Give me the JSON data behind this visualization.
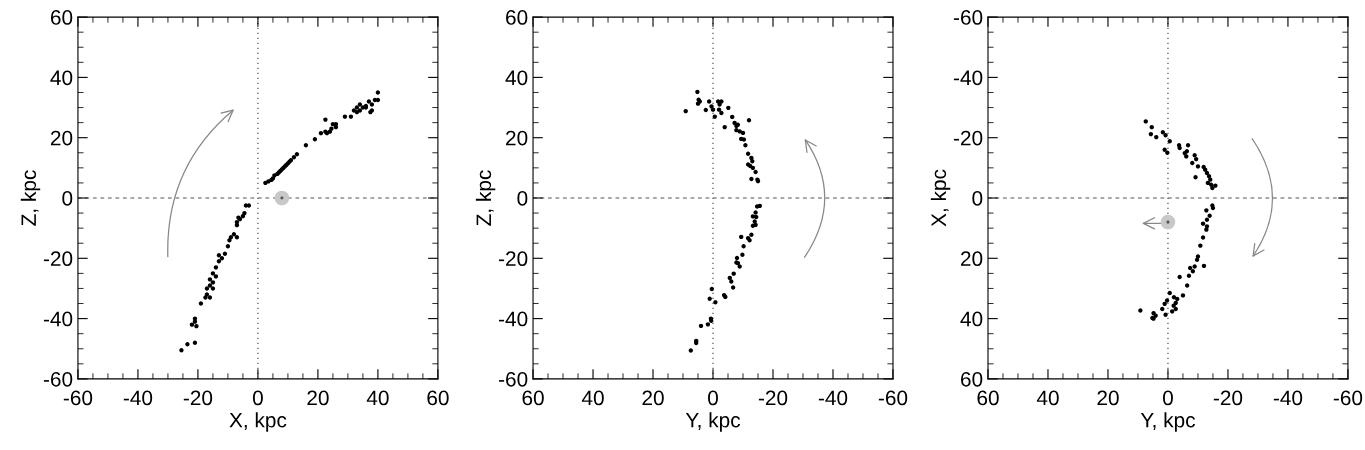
{
  "chart_data": [
    {
      "type": "scatter",
      "xlabel": "X, kpc",
      "ylabel": "Z, kpc",
      "xlim": [
        -60,
        60
      ],
      "ylim": [
        -60,
        60
      ],
      "xticks": [
        -60,
        -40,
        -20,
        0,
        20,
        40,
        60
      ],
      "yticks": [
        -60,
        -40,
        -20,
        0,
        20,
        40,
        60
      ],
      "grid": false,
      "marker": "circle",
      "ref_lines": [
        {
          "axis": "x",
          "value": 0,
          "line_style": "dotted",
          "color": "#555555"
        },
        {
          "axis": "y",
          "value": 0,
          "line_style": "dashed",
          "color": "#555555"
        }
      ],
      "series": [
        {
          "color": "#000000",
          "x": [
            2.5,
            3.5,
            4.5,
            5,
            5.5,
            6.5,
            7,
            7.5,
            8,
            8.5,
            9,
            9.5,
            10,
            10.5,
            11,
            12,
            13,
            16,
            19,
            21,
            22.5,
            22.5,
            23,
            24,
            24.5,
            25,
            26,
            26,
            29,
            31,
            32,
            33,
            33,
            34,
            34,
            35,
            36,
            37,
            38,
            38,
            39,
            40,
            40,
            37.5,
            36,
            -3,
            -4,
            -4.5,
            -5,
            -6,
            -6.5,
            -7,
            -7,
            -7,
            -8,
            -9,
            -9.5,
            -10,
            -11,
            -12,
            -13,
            -13,
            -14,
            -14,
            -15,
            -15,
            -16,
            -16,
            -15,
            -17,
            -17,
            -16,
            -17.5,
            -19,
            -21,
            -21,
            -21,
            -22,
            -20.5,
            -23.5,
            -25.5
          ],
          "values": [
            5,
            5.5,
            6,
            6.5,
            7.5,
            8,
            8.5,
            9,
            9.5,
            10,
            10.5,
            11,
            11.5,
            12,
            12.5,
            13.5,
            14.5,
            17.5,
            19.5,
            21.5,
            26,
            22,
            21.5,
            22,
            23,
            24.5,
            24.5,
            23.5,
            27,
            27,
            29,
            30,
            28.5,
            31,
            29,
            30,
            30,
            32,
            31,
            29,
            32.5,
            35,
            32.5,
            28.5,
            30.5,
            -2.5,
            -2.5,
            -5,
            -6,
            -7,
            -6.5,
            -9,
            -8,
            -13,
            -12,
            -13,
            -14,
            -16,
            -18.5,
            -20,
            -19,
            -21,
            -23,
            -26,
            -25,
            -28,
            -27,
            -29,
            -30,
            -30,
            -32,
            -33,
            -33,
            -35,
            -40,
            -41,
            -48,
            -42,
            -42.5,
            -48.5,
            -50.5
          ]
        },
        {
          "color": "#c8c8c8",
          "x": [
            8
          ],
          "values": [
            0
          ]
        }
      ]
    },
    {
      "type": "scatter",
      "xlabel": "Y, kpc",
      "ylabel": "Z, kpc",
      "xlim": [
        60,
        -60
      ],
      "ylim": [
        -60,
        60
      ],
      "xticks": [
        60,
        40,
        20,
        0,
        -20,
        -40,
        -60
      ],
      "yticks": [
        -60,
        -40,
        -20,
        0,
        20,
        40,
        60
      ],
      "grid": false,
      "marker": "circle",
      "ref_lines": [
        {
          "axis": "x",
          "value": 0,
          "line_style": "dotted",
          "color": "#555555"
        },
        {
          "axis": "y",
          "value": 0,
          "line_style": "dashed",
          "color": "#555555"
        }
      ],
      "series": [
        {
          "color": "#000000",
          "x": [
            9.1,
            5.2,
            4.8,
            4.4,
            5,
            2.4,
            1.3,
            0.5,
            0,
            -0.6,
            -1.7,
            -2.2,
            -2.8,
            -2,
            -2.8,
            -3.9,
            -5.1,
            -6.4,
            -7.2,
            -7.8,
            -8.3,
            -8.9,
            -10,
            -9.4,
            -10.3,
            -10.8,
            -12,
            -11.7,
            -12.8,
            -13.1,
            -11.7,
            -12.4,
            -13.3,
            -14.2,
            -12.8,
            -14.8,
            -15,
            -7.8,
            -15.6,
            -14.7,
            -14.2,
            -14.4,
            -13.3,
            -13.9,
            -13.3,
            -14.2,
            -12.8,
            -11.7,
            -12.2,
            -9.4,
            -10.2,
            -9.8,
            -8,
            -8.3,
            -7.8,
            -8.9,
            -6.9,
            -5.6,
            -6.1,
            -6.7,
            -3.7,
            -4.1,
            0.4,
            1.1,
            -0.8,
            0.7,
            0.6,
            1.7,
            4,
            5.6,
            5.6,
            7.4
          ],
          "values": [
            28.8,
            35.2,
            32.6,
            32,
            31.3,
            29.2,
            32,
            30.4,
            29.3,
            27,
            32,
            31,
            32,
            29.3,
            28.2,
            23.5,
            29.9,
            26.9,
            24.9,
            22.5,
            24.3,
            22.1,
            21.6,
            19.6,
            19.4,
            17.5,
            25.8,
            14.7,
            13.3,
            12.2,
            11.1,
            10.6,
            10,
            8.6,
            6.3,
            6.1,
            5.6,
            23.9,
            -2.6,
            -2.8,
            -4.8,
            -6.3,
            -6.1,
            -7.8,
            -9.2,
            -8.9,
            -12.2,
            -13.3,
            -14,
            -12.9,
            -16,
            -18.8,
            -19.9,
            -21.6,
            -21.4,
            -22.7,
            -25.1,
            -26.5,
            -27.7,
            -29.7,
            -32.2,
            -32.8,
            -30.2,
            -33.4,
            -34.6,
            -40,
            -40.7,
            -41.9,
            -42.4,
            -47.4,
            -48.1,
            -50.6
          ]
        }
      ]
    },
    {
      "type": "scatter",
      "xlabel": "Y, kpc",
      "ylabel": "X, kpc",
      "xlim": [
        60,
        -60
      ],
      "ylim": [
        60,
        -60
      ],
      "xticks": [
        60,
        40,
        20,
        0,
        -20,
        -40,
        -60
      ],
      "yticks": [
        60,
        40,
        20,
        0,
        -20,
        -40,
        -60
      ],
      "grid": false,
      "marker": "circle",
      "ref_lines": [
        {
          "axis": "x",
          "value": 0,
          "line_style": "dotted",
          "color": "#555555"
        },
        {
          "axis": "y",
          "value": 0,
          "line_style": "dashed",
          "color": "#555555"
        }
      ],
      "series": [
        {
          "color": "#000000",
          "x": [
            7.4,
            5.4,
            5.7,
            3.9,
            1.7,
            0.8,
            -0.6,
            1.1,
            0.2,
            -3.7,
            -3.9,
            -6.7,
            -5.6,
            -6.3,
            -6.1,
            -8.9,
            -9.4,
            -8.1,
            -10,
            -11.9,
            -12.4,
            -13,
            -9.2,
            -13.7,
            -14.1,
            -13.3,
            -14.4,
            -15.8,
            -14.8,
            -14.8,
            -15,
            -12.8,
            -13.9,
            -13,
            -11.7,
            -13,
            -12.8,
            -11.7,
            -10.8,
            -10,
            -9.7,
            -12,
            -8.9,
            -7.4,
            -8.3,
            -7,
            -3.9,
            -6.4,
            -5,
            -0.6,
            -2,
            -3.1,
            -2.6,
            0.3,
            1.1,
            -1.9,
            -2.6,
            1.9,
            -1.4,
            0.8,
            4.8,
            4.1,
            5.2,
            4.8,
            9.2
          ],
          "values": [
            -25.4,
            -23.5,
            -21.2,
            -20.2,
            -21.8,
            -20.8,
            -18.8,
            -16,
            -15,
            -17.5,
            -16.6,
            -17.5,
            -14.9,
            -15.5,
            -13.8,
            -14.2,
            -12.9,
            -11.6,
            -10.5,
            -10.3,
            -9.4,
            -8.3,
            -6.9,
            -7.2,
            -6.1,
            -5,
            -4.4,
            -4.1,
            -3.3,
            2.5,
            3.3,
            4.1,
            5.9,
            7.2,
            8.5,
            9.4,
            10.5,
            13.1,
            15.8,
            19.4,
            20.5,
            22.5,
            22.7,
            23.2,
            24.3,
            25.8,
            26.2,
            29,
            32.3,
            31.5,
            32.9,
            33.5,
            34.8,
            34,
            35.1,
            35.7,
            36.8,
            36.8,
            37.6,
            38.7,
            38.2,
            39,
            39.8,
            40,
            37.3
          ]
        },
        {
          "color": "#c8c8c8",
          "x": [
            0
          ],
          "values": [
            8
          ]
        }
      ]
    }
  ]
}
